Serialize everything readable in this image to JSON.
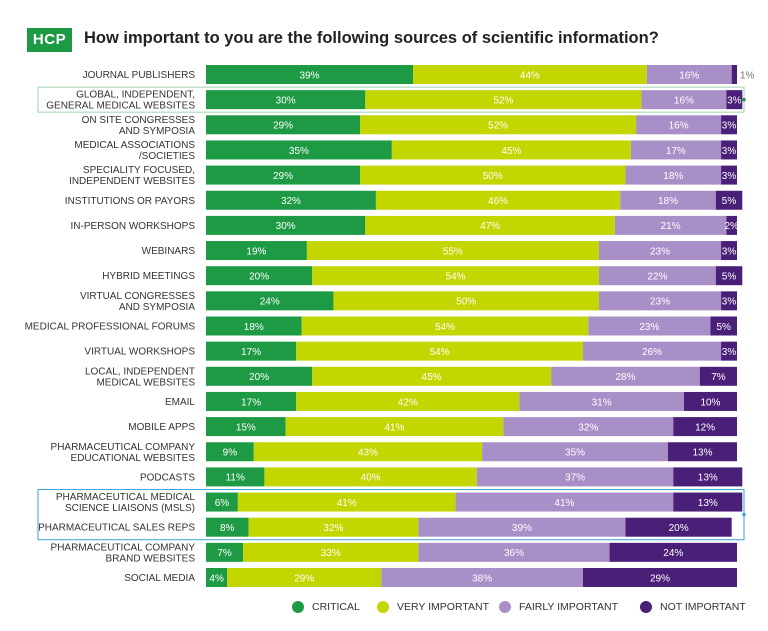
{
  "header": {
    "badge": "HCP",
    "title": "How important to you are the following sources of scientific information?"
  },
  "colors": {
    "critical": "#1e9a45",
    "very_important": "#c4d600",
    "fairly_important": "#a98fc8",
    "not_important": "#4a1f78",
    "highlight": "#3aa3d6"
  },
  "chart_data": {
    "type": "bar",
    "orientation": "horizontal",
    "stacked": true,
    "categories": [
      "JOURNAL PUBLISHERS",
      "GLOBAL, INDEPENDENT, GENERAL MEDICAL WEBSITES",
      "ON SITE CONGRESSES AND SYMPOSIA",
      "MEDICAL ASSOCIATIONS /SOCIETIES",
      "SPECIALITY FOCUSED, INDEPENDENT WEBSITES",
      "INSTITUTIONS OR PAYORS",
      "IN-PERSON WORKSHOPS",
      "WEBINARS",
      "HYBRID MEETINGS",
      "VIRTUAL CONGRESSES AND SYMPOSIA",
      "MEDICAL PROFESSIONAL FORUMS",
      "VIRTUAL WORKSHOPS",
      "LOCAL, INDEPENDENT MEDICAL WEBSITES",
      "EMAIL",
      "MOBILE APPS",
      "PHARMACEUTICAL COMPANY EDUCATIONAL WEBSITES",
      "PODCASTS",
      "PHARMACEUTICAL MEDICAL SCIENCE LIAISONS (MSLS)",
      "PHARMACEUTICAL SALES REPS",
      "PHARMACEUTICAL COMPANY BRAND WEBSITES",
      "SOCIAL MEDIA"
    ],
    "category_lines": [
      [
        "JOURNAL PUBLISHERS"
      ],
      [
        "GLOBAL, INDEPENDENT,",
        "GENERAL MEDICAL WEBSITES"
      ],
      [
        "ON SITE CONGRESSES",
        "AND SYMPOSIA"
      ],
      [
        "MEDICAL ASSOCIATIONS",
        "/SOCIETIES"
      ],
      [
        "SPECIALITY FOCUSED,",
        "INDEPENDENT WEBSITES"
      ],
      [
        "INSTITUTIONS OR PAYORS"
      ],
      [
        "IN-PERSON WORKSHOPS"
      ],
      [
        "WEBINARS"
      ],
      [
        "HYBRID MEETINGS"
      ],
      [
        "VIRTUAL CONGRESSES",
        "AND SYMPOSIA"
      ],
      [
        "MEDICAL PROFESSIONAL FORUMS"
      ],
      [
        "VIRTUAL WORKSHOPS"
      ],
      [
        "LOCAL, INDEPENDENT",
        "MEDICAL WEBSITES"
      ],
      [
        "EMAIL"
      ],
      [
        "MOBILE APPS"
      ],
      [
        "PHARMACEUTICAL COMPANY",
        "EDUCATIONAL WEBSITES"
      ],
      [
        "PODCASTS"
      ],
      [
        "PHARMACEUTICAL MEDICAL",
        "SCIENCE LIAISONS (MSLS)"
      ],
      [
        "PHARMACEUTICAL SALES REPS"
      ],
      [
        "PHARMACEUTICAL COMPANY",
        "BRAND WEBSITES"
      ],
      [
        "SOCIAL MEDIA"
      ]
    ],
    "series": [
      {
        "name": "CRITICAL",
        "color": "#1e9a45",
        "values": [
          39,
          30,
          29,
          35,
          29,
          32,
          30,
          19,
          20,
          24,
          18,
          17,
          20,
          17,
          15,
          9,
          11,
          6,
          8,
          7,
          4
        ]
      },
      {
        "name": "VERY IMPORTANT",
        "color": "#c4d600",
        "values": [
          44,
          52,
          52,
          45,
          50,
          46,
          47,
          55,
          54,
          50,
          54,
          54,
          45,
          42,
          41,
          43,
          40,
          41,
          32,
          33,
          29
        ]
      },
      {
        "name": "FAIRLY IMPORTANT",
        "color": "#a98fc8",
        "values": [
          16,
          16,
          16,
          17,
          18,
          18,
          21,
          23,
          22,
          23,
          23,
          26,
          28,
          31,
          32,
          35,
          37,
          41,
          39,
          36,
          38
        ]
      },
      {
        "name": "NOT IMPORTANT",
        "color": "#4a1f78",
        "values": [
          1,
          3,
          3,
          3,
          3,
          5,
          2,
          3,
          5,
          3,
          5,
          3,
          7,
          10,
          12,
          13,
          13,
          13,
          20,
          24,
          29
        ]
      }
    ],
    "data_labels_suffix": "%",
    "highlighted_groups": [
      [
        1
      ],
      [
        17,
        18
      ]
    ],
    "xlim": [
      0,
      100
    ],
    "legend_position": "bottom"
  }
}
